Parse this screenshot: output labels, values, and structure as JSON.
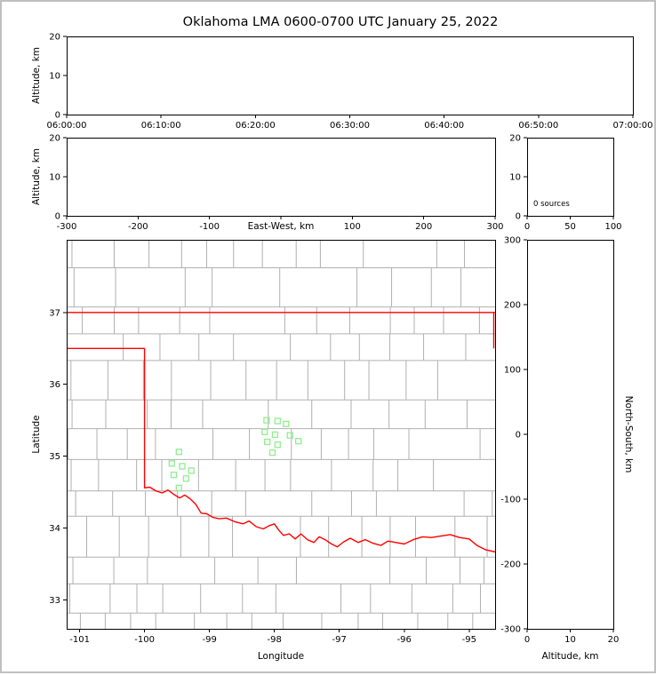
{
  "title": "Oklahoma LMA 0600-0700 UTC January 25, 2022",
  "colors": {
    "axis": "#000000",
    "text": "#000000",
    "county_line": "#b0b0b0",
    "state_border": "#ff0000",
    "station_marker": "#90ee90",
    "panel_bg": "#ffffff",
    "page_border": "#c0c0c0"
  },
  "chart_data": [
    {
      "id": "time_height",
      "type": "scatter",
      "ylabel": "Altitude, km",
      "xlim": [
        0,
        3600
      ],
      "ylim": [
        0,
        20
      ],
      "xticks": [
        0,
        600,
        1200,
        1800,
        2400,
        3000,
        3600
      ],
      "xtick_labels": [
        "06:00:00",
        "06:10:00",
        "06:20:00",
        "06:30:00",
        "06:40:00",
        "06:50:00",
        "07:00:00"
      ],
      "yticks": [
        0,
        10,
        20
      ],
      "points": []
    },
    {
      "id": "ew_height",
      "type": "scatter",
      "xlabel": "East-West, km",
      "ylabel": "Altitude, km",
      "xlim": [
        -300,
        300
      ],
      "ylim": [
        0,
        20
      ],
      "xticks": [
        -300,
        -200,
        -100,
        0,
        100,
        200,
        300
      ],
      "xtick_labels": [
        "-300",
        "-200",
        "-100",
        "",
        "100",
        "200",
        "300"
      ],
      "yticks": [
        0,
        10,
        20
      ],
      "points": []
    },
    {
      "id": "altitude_histogram",
      "type": "line",
      "annotation": "0 sources",
      "xlim": [
        0,
        100
      ],
      "ylim": [
        0,
        20
      ],
      "xticks": [
        0,
        50,
        100
      ],
      "yticks": [
        0,
        10,
        20
      ],
      "points": []
    },
    {
      "id": "plan_view",
      "type": "scatter",
      "xlabel": "Longitude",
      "ylabel": "Latitude",
      "xlim": [
        -101.2,
        -94.6
      ],
      "ylim": [
        32.6,
        38.01
      ],
      "xticks": [
        -101,
        -100,
        -99,
        -98,
        -97,
        -96,
        -95
      ],
      "yticks": [
        33,
        34,
        35,
        36,
        37
      ],
      "stations": [
        [
          -99.47,
          35.06
        ],
        [
          -99.58,
          34.9
        ],
        [
          -99.42,
          34.86
        ],
        [
          -99.28,
          34.8
        ],
        [
          -99.55,
          34.74
        ],
        [
          -99.36,
          34.69
        ],
        [
          -99.47,
          34.56
        ],
        [
          -98.12,
          35.5
        ],
        [
          -97.95,
          35.49
        ],
        [
          -97.82,
          35.45
        ],
        [
          -98.15,
          35.34
        ],
        [
          -97.99,
          35.3
        ],
        [
          -97.76,
          35.29
        ],
        [
          -98.11,
          35.2
        ],
        [
          -97.95,
          35.16
        ],
        [
          -97.63,
          35.21
        ],
        [
          -98.03,
          35.05
        ]
      ],
      "state_border_lines": [
        [
          [
            -101.2,
            37.0
          ],
          [
            -94.6,
            37.0
          ]
        ],
        [
          [
            -94.62,
            37.0
          ],
          [
            -94.62,
            36.5
          ]
        ],
        [
          [
            -101.2,
            36.5
          ],
          [
            -100.0,
            36.5
          ],
          [
            -100.0,
            34.56
          ],
          [
            -99.92,
            34.57
          ],
          [
            -99.83,
            34.52
          ],
          [
            -99.73,
            34.49
          ],
          [
            -99.64,
            34.53
          ],
          [
            -99.55,
            34.47
          ],
          [
            -99.46,
            34.42
          ],
          [
            -99.38,
            34.46
          ],
          [
            -99.3,
            34.41
          ],
          [
            -99.21,
            34.33
          ],
          [
            -99.13,
            34.21
          ],
          [
            -99.04,
            34.2
          ],
          [
            -98.95,
            34.15
          ],
          [
            -98.85,
            34.13
          ],
          [
            -98.74,
            34.14
          ],
          [
            -98.61,
            34.09
          ],
          [
            -98.48,
            34.06
          ],
          [
            -98.39,
            34.1
          ],
          [
            -98.28,
            34.02
          ],
          [
            -98.17,
            33.99
          ],
          [
            -98.09,
            34.03
          ],
          [
            -98.0,
            34.06
          ],
          [
            -97.94,
            33.98
          ],
          [
            -97.86,
            33.9
          ],
          [
            -97.77,
            33.92
          ],
          [
            -97.68,
            33.85
          ],
          [
            -97.59,
            33.92
          ],
          [
            -97.49,
            33.84
          ],
          [
            -97.39,
            33.8
          ],
          [
            -97.31,
            33.88
          ],
          [
            -97.22,
            33.84
          ],
          [
            -97.12,
            33.78
          ],
          [
            -97.03,
            33.74
          ],
          [
            -96.93,
            33.81
          ],
          [
            -96.83,
            33.86
          ],
          [
            -96.71,
            33.8
          ],
          [
            -96.6,
            33.84
          ],
          [
            -96.48,
            33.79
          ],
          [
            -96.36,
            33.76
          ],
          [
            -96.25,
            33.82
          ],
          [
            -96.13,
            33.8
          ],
          [
            -96.0,
            33.78
          ],
          [
            -95.86,
            33.84
          ],
          [
            -95.72,
            33.88
          ],
          [
            -95.58,
            33.87
          ],
          [
            -95.44,
            33.89
          ],
          [
            -95.29,
            33.91
          ],
          [
            -95.15,
            33.87
          ],
          [
            -95.0,
            33.85
          ],
          [
            -94.88,
            33.76
          ],
          [
            -94.75,
            33.7
          ],
          [
            -94.6,
            33.67
          ]
        ]
      ],
      "county_grid": {
        "lat_step": 0.44,
        "lon_step": 0.52,
        "seed": 9
      }
    },
    {
      "id": "ns_height",
      "type": "scatter",
      "xlabel": "Altitude, km",
      "ylabel_right": "North-South, km",
      "xlim": [
        0,
        20
      ],
      "ylim": [
        -300,
        300
      ],
      "xticks": [
        0,
        10,
        20
      ],
      "yticks": [
        -300,
        -200,
        -100,
        0,
        100,
        200,
        300
      ],
      "points": []
    }
  ]
}
